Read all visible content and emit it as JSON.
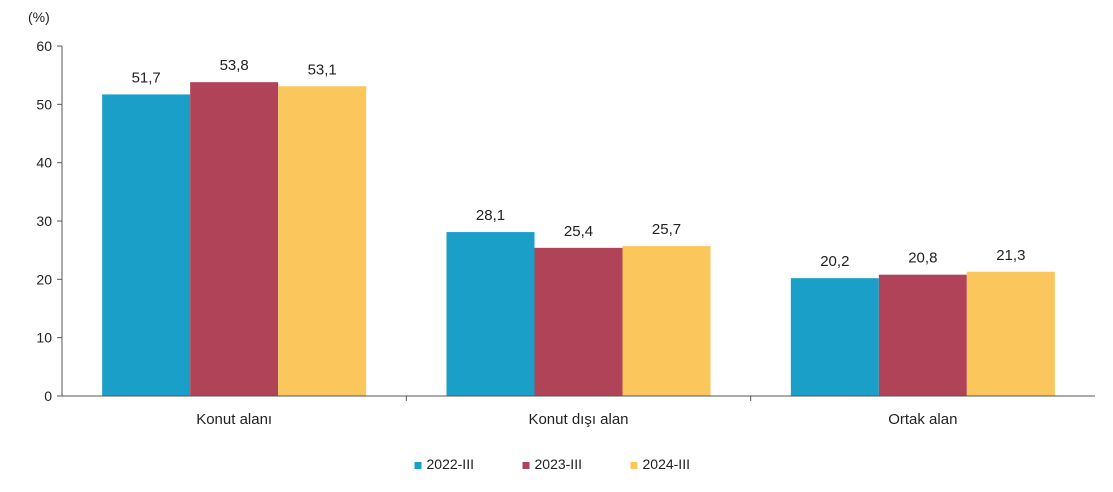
{
  "chart_data": {
    "type": "bar",
    "unit_label": "(%)",
    "categories": [
      "Konut alanı",
      "Konut dışı alan",
      "Ortak alan"
    ],
    "series": [
      {
        "name": "2022-III",
        "color": "#1a9fc9",
        "values": [
          51.7,
          28.1,
          20.2
        ],
        "labels": [
          "51,7",
          "28,1",
          "20,2"
        ]
      },
      {
        "name": "2023-III",
        "color": "#b04358",
        "values": [
          53.8,
          25.4,
          20.8
        ],
        "labels": [
          "53,8",
          "25,4",
          "20,8"
        ]
      },
      {
        "name": "2024-III",
        "color": "#fbc75c",
        "values": [
          53.1,
          25.7,
          21.3
        ],
        "labels": [
          "53,1",
          "25,7",
          "21,3"
        ]
      }
    ],
    "ylim": [
      0,
      60
    ],
    "yticks": [
      0,
      10,
      20,
      30,
      40,
      50,
      60
    ],
    "grid": false,
    "legend": "bottom-center"
  }
}
